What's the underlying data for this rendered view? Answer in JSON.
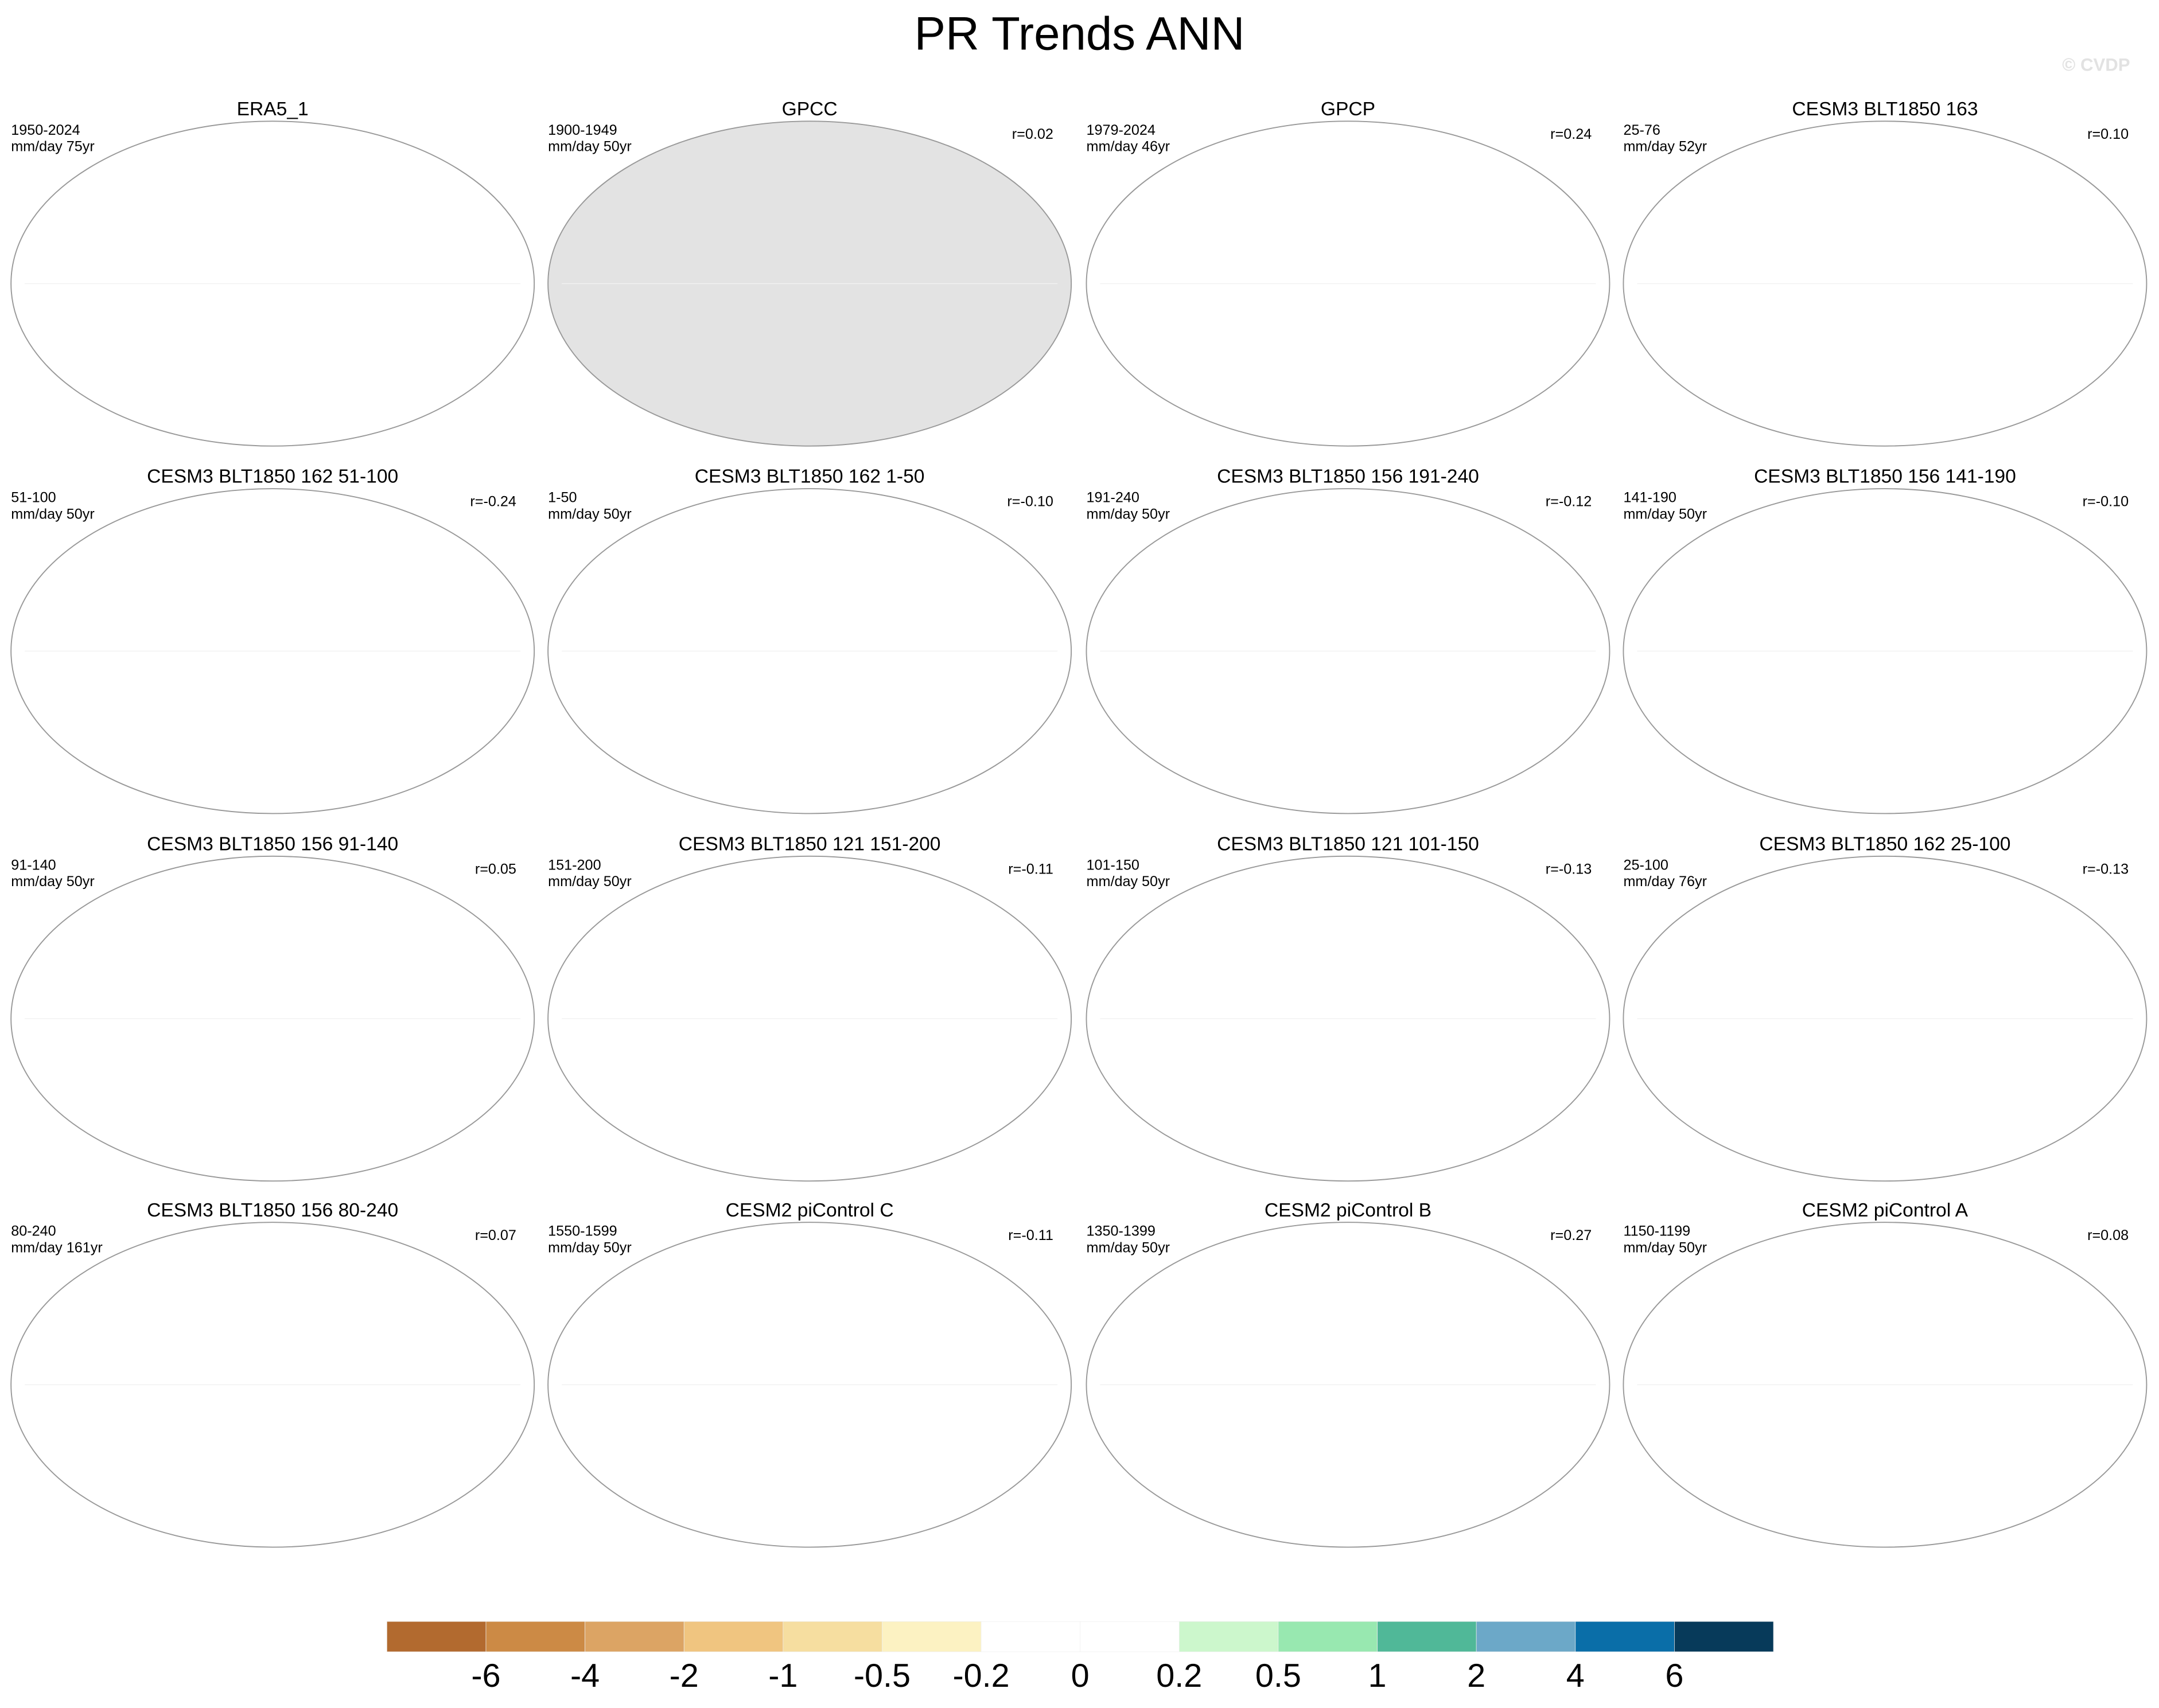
{
  "header": {
    "title": "PR Trends ANN",
    "watermark": "© CVDP"
  },
  "panels": [
    {
      "title": "ERA5_1",
      "period": "1950-2024",
      "units": "mm/day 75yr"
    },
    {
      "title": "GPCC",
      "period": "1900-1949",
      "units": "mm/day 50yr",
      "r": "r=0.02",
      "mask_color": "#e3e3e3"
    },
    {
      "title": "GPCP",
      "period": "1979-2024",
      "units": "mm/day 46yr",
      "r": "r=0.24"
    },
    {
      "title": "CESM3 BLT1850 163",
      "period": "25-76",
      "units": "mm/day 52yr",
      "r": "r=0.10"
    },
    {
      "title": "CESM3 BLT1850 162 51-100",
      "period": "51-100",
      "units": "mm/day 50yr",
      "r": "r=-0.24"
    },
    {
      "title": "CESM3 BLT1850 162 1-50",
      "period": "1-50",
      "units": "mm/day 50yr",
      "r": "r=-0.10"
    },
    {
      "title": "CESM3 BLT1850 156 191-240",
      "period": "191-240",
      "units": "mm/day 50yr",
      "r": "r=-0.12"
    },
    {
      "title": "CESM3 BLT1850 156 141-190",
      "period": "141-190",
      "units": "mm/day 50yr",
      "r": "r=-0.10"
    },
    {
      "title": "CESM3 BLT1850 156 91-140",
      "period": "91-140",
      "units": "mm/day 50yr",
      "r": "r=0.05"
    },
    {
      "title": "CESM3 BLT1850 121 151-200",
      "period": "151-200",
      "units": "mm/day 50yr",
      "r": "r=-0.11"
    },
    {
      "title": "CESM3 BLT1850 121 101-150",
      "period": "101-150",
      "units": "mm/day 50yr",
      "r": "r=-0.13"
    },
    {
      "title": "CESM3 BLT1850 162 25-100",
      "period": "25-100",
      "units": "mm/day 76yr",
      "r": "r=-0.13"
    },
    {
      "title": "CESM3 BLT1850 156 80-240",
      "period": "80-240",
      "units": "mm/day 161yr",
      "r": "r=0.07"
    },
    {
      "title": "CESM2 piControl C",
      "period": "1550-1599",
      "units": "mm/day 50yr",
      "r": "r=-0.11"
    },
    {
      "title": "CESM2 piControl B",
      "period": "1350-1399",
      "units": "mm/day 50yr",
      "r": "r=0.27"
    },
    {
      "title": "CESM2 piControl A",
      "period": "1150-1199",
      "units": "mm/day 50yr",
      "r": "r=0.08"
    }
  ],
  "colorbar": {
    "levels": [
      -6,
      -4,
      -2,
      -1,
      -0.5,
      -0.2,
      0,
      0.2,
      0.5,
      1,
      2,
      4,
      6
    ],
    "colors": [
      "#b26a2f",
      "#cc8a45",
      "#dca464",
      "#f0c580",
      "#f6dea0",
      "#fcf2c2",
      "#ffffff",
      "#ffffff",
      "#ccf7cc",
      "#98e8b0",
      "#50b898",
      "#6ca8c8",
      "#0a6ea8",
      "#073a5a"
    ]
  }
}
